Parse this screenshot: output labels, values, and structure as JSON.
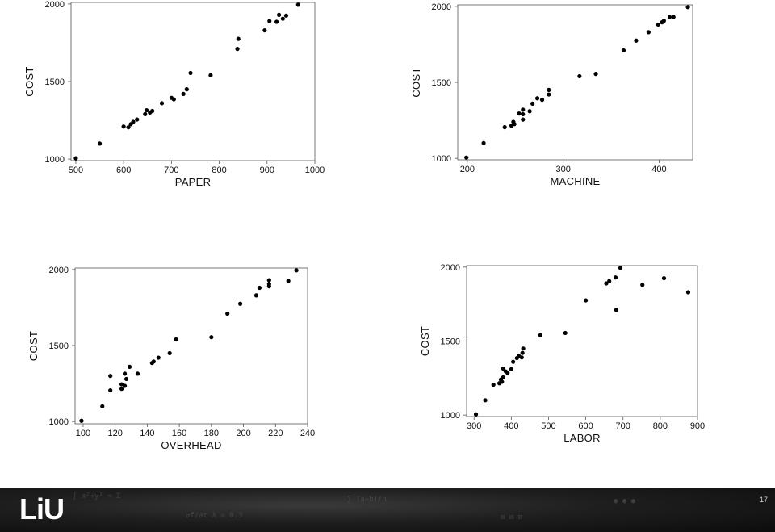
{
  "slide": {
    "page_number": "17",
    "logo_text": "LiU"
  },
  "chart_data": [
    {
      "type": "scatter",
      "xlabel": "PAPER",
      "ylabel": "COST",
      "xlim": [
        490,
        1000
      ],
      "ylim": [
        990,
        2010
      ],
      "xticks": [
        500,
        600,
        700,
        800,
        900,
        1000
      ],
      "yticks": [
        1000,
        1500,
        2000
      ],
      "points": [
        [
          500,
          1005
        ],
        [
          550,
          1100
        ],
        [
          600,
          1210
        ],
        [
          610,
          1205
        ],
        [
          615,
          1225
        ],
        [
          620,
          1240
        ],
        [
          628,
          1255
        ],
        [
          645,
          1290
        ],
        [
          648,
          1315
        ],
        [
          655,
          1300
        ],
        [
          660,
          1310
        ],
        [
          680,
          1360
        ],
        [
          700,
          1395
        ],
        [
          705,
          1385
        ],
        [
          725,
          1420
        ],
        [
          732,
          1450
        ],
        [
          740,
          1555
        ],
        [
          782,
          1540
        ],
        [
          838,
          1710
        ],
        [
          840,
          1775
        ],
        [
          895,
          1830
        ],
        [
          905,
          1890
        ],
        [
          920,
          1885
        ],
        [
          925,
          1930
        ],
        [
          933,
          1905
        ],
        [
          940,
          1925
        ],
        [
          965,
          1995
        ]
      ]
    },
    {
      "type": "scatter",
      "xlabel": "MACHINE",
      "ylabel": "COST",
      "xlim": [
        190,
        435
      ],
      "ylim": [
        990,
        2010
      ],
      "xticks": [
        200,
        300,
        400
      ],
      "yticks": [
        1000,
        1500,
        2000
      ],
      "points": [
        [
          199,
          1005
        ],
        [
          217,
          1100
        ],
        [
          239,
          1205
        ],
        [
          246,
          1215
        ],
        [
          248,
          1240
        ],
        [
          249,
          1225
        ],
        [
          254,
          1295
        ],
        [
          258,
          1320
        ],
        [
          258,
          1290
        ],
        [
          258,
          1255
        ],
        [
          265,
          1310
        ],
        [
          268,
          1360
        ],
        [
          273,
          1395
        ],
        [
          278,
          1385
        ],
        [
          285,
          1420
        ],
        [
          285,
          1450
        ],
        [
          317,
          1540
        ],
        [
          334,
          1555
        ],
        [
          363,
          1710
        ],
        [
          376,
          1775
        ],
        [
          389,
          1830
        ],
        [
          399,
          1880
        ],
        [
          403,
          1895
        ],
        [
          405,
          1905
        ],
        [
          411,
          1930
        ],
        [
          415,
          1930
        ],
        [
          430,
          1995
        ]
      ]
    },
    {
      "type": "scatter",
      "xlabel": "OVERHEAD",
      "ylabel": "COST",
      "xlim": [
        95,
        240
      ],
      "ylim": [
        985,
        2010
      ],
      "xticks": [
        100,
        120,
        140,
        160,
        180,
        200,
        220,
        240
      ],
      "yticks": [
        1000,
        1500,
        2000
      ],
      "points": [
        [
          99,
          1005
        ],
        [
          112,
          1100
        ],
        [
          117,
          1300
        ],
        [
          117,
          1205
        ],
        [
          124,
          1245
        ],
        [
          124,
          1215
        ],
        [
          126,
          1315
        ],
        [
          126,
          1235
        ],
        [
          127,
          1280
        ],
        [
          129,
          1360
        ],
        [
          134,
          1315
        ],
        [
          143,
          1385
        ],
        [
          144,
          1395
        ],
        [
          147,
          1420
        ],
        [
          154,
          1450
        ],
        [
          158,
          1540
        ],
        [
          180,
          1555
        ],
        [
          190,
          1710
        ],
        [
          198,
          1775
        ],
        [
          208,
          1830
        ],
        [
          210,
          1880
        ],
        [
          216,
          1930
        ],
        [
          216,
          1905
        ],
        [
          216,
          1890
        ],
        [
          228,
          1925
        ],
        [
          233,
          1995
        ]
      ]
    },
    {
      "type": "scatter",
      "xlabel": "LABOR",
      "ylabel": "COST",
      "xlim": [
        280,
        900
      ],
      "ylim": [
        990,
        2010
      ],
      "xticks": [
        300,
        400,
        500,
        600,
        700,
        800,
        900
      ],
      "yticks": [
        1000,
        1500,
        2000
      ],
      "points": [
        [
          305,
          1005
        ],
        [
          330,
          1100
        ],
        [
          352,
          1205
        ],
        [
          368,
          1215
        ],
        [
          372,
          1240
        ],
        [
          375,
          1225
        ],
        [
          378,
          1255
        ],
        [
          378,
          1315
        ],
        [
          385,
          1295
        ],
        [
          390,
          1285
        ],
        [
          400,
          1310
        ],
        [
          405,
          1360
        ],
        [
          415,
          1385
        ],
        [
          420,
          1400
        ],
        [
          428,
          1390
        ],
        [
          430,
          1420
        ],
        [
          432,
          1450
        ],
        [
          478,
          1540
        ],
        [
          545,
          1555
        ],
        [
          600,
          1775
        ],
        [
          655,
          1890
        ],
        [
          663,
          1905
        ],
        [
          680,
          1930
        ],
        [
          682,
          1710
        ],
        [
          693,
          1995
        ],
        [
          752,
          1880
        ],
        [
          810,
          1925
        ],
        [
          875,
          1830
        ]
      ]
    }
  ]
}
